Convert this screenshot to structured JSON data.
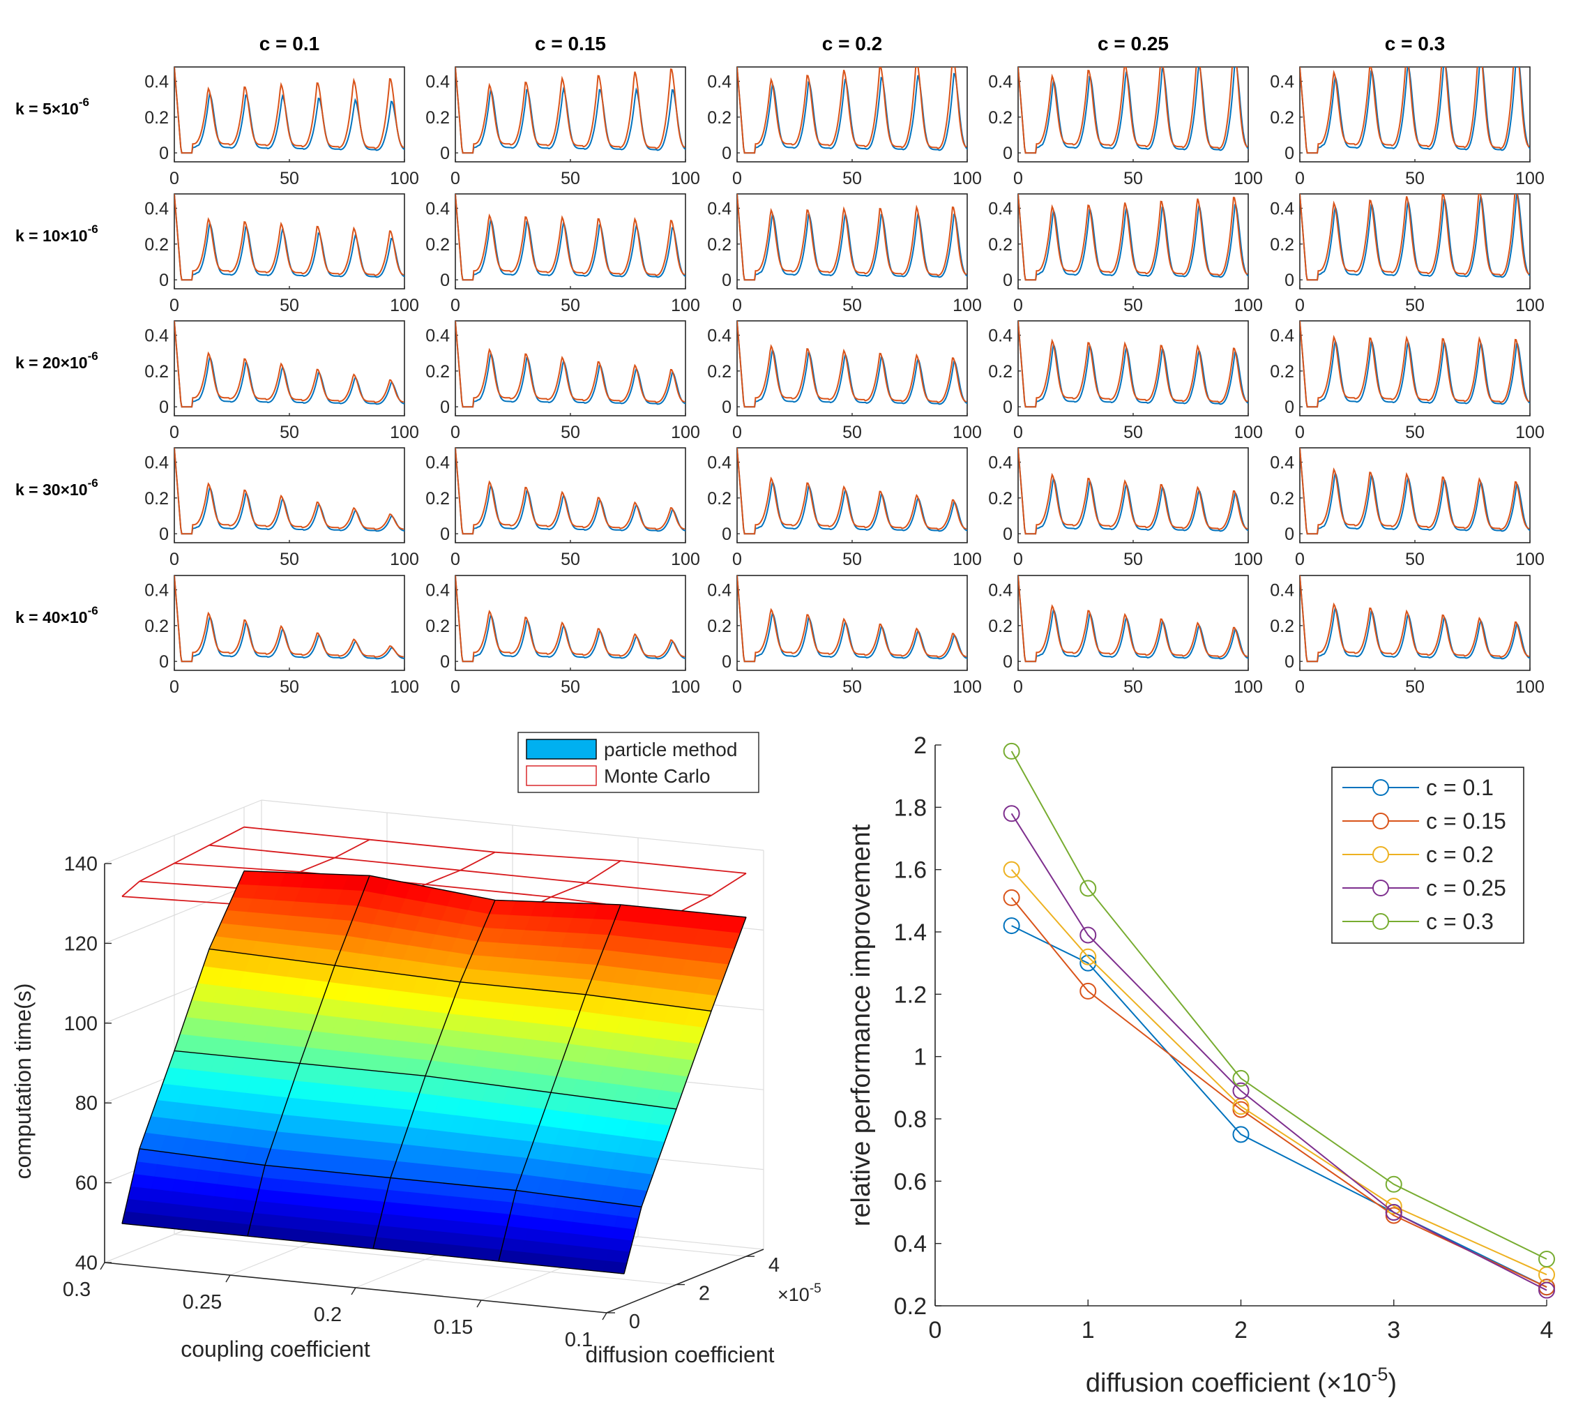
{
  "chart_data": [
    {
      "type": "line",
      "subtype": "small-multiples",
      "column_titles": [
        "c = 0.1",
        "c = 0.15",
        "c = 0.2",
        "c = 0.25",
        "c = 0.3"
      ],
      "row_labels": [
        "k = 5×10",
        "k = 10×10",
        "k = 20×10",
        "k = 30×10",
        "k = 40×10"
      ],
      "row_label_exponent": "-6",
      "c_values": [
        0.1,
        0.15,
        0.2,
        0.25,
        0.3
      ],
      "k_values": [
        5,
        10,
        20,
        30,
        40
      ],
      "xlim": [
        0,
        100
      ],
      "ylim": [
        -0.05,
        0.48
      ],
      "x_ticks": [
        "0",
        "50",
        "100"
      ],
      "y_ticks": [
        "0",
        "0.2",
        "0.4"
      ],
      "period": 15.8,
      "series_colors": [
        "#0072BD",
        "#D95319"
      ],
      "grid": false,
      "first_peak_amplitude": [
        [
          0.31,
          0.33,
          0.36,
          0.38,
          0.4
        ],
        [
          0.29,
          0.31,
          0.34,
          0.36,
          0.38
        ],
        [
          0.25,
          0.27,
          0.29,
          0.32,
          0.34
        ],
        [
          0.23,
          0.24,
          0.26,
          0.28,
          0.31
        ],
        [
          0.22,
          0.23,
          0.24,
          0.26,
          0.27
        ]
      ],
      "amplitude_growth": [
        [
          0.06,
          0.08,
          0.1,
          0.12,
          0.14
        ],
        [
          -0.03,
          0.0,
          0.03,
          0.05,
          0.07
        ],
        [
          -0.11,
          -0.07,
          -0.03,
          -0.01,
          0.01
        ],
        [
          -0.14,
          -0.11,
          -0.08,
          -0.05,
          -0.03
        ],
        [
          -0.16,
          -0.13,
          -0.1,
          -0.08,
          -0.06
        ]
      ],
      "second_series_divergence": [
        [
          0.3,
          0.24,
          0.17,
          0.14,
          0.12
        ],
        [
          0.13,
          0.1,
          0.08,
          0.07,
          0.06
        ],
        [
          0.04,
          0.04,
          0.04,
          0.04,
          0.04
        ],
        [
          0.02,
          0.02,
          0.02,
          0.02,
          0.02
        ],
        [
          0.01,
          0.01,
          0.01,
          0.01,
          0.01
        ]
      ]
    },
    {
      "type": "surface",
      "legend": [
        "particle method",
        "Monte Carlo"
      ],
      "legend_position": "top-right",
      "xlabel": "coupling coefficient",
      "ylabel": "diffusion coefficient",
      "zlabel": "computation time(s)",
      "x_ticks": [
        "0.3",
        "0.25",
        "0.2",
        "0.15",
        "0.1"
      ],
      "y_ticks": [
        "0",
        "2",
        "4"
      ],
      "y_multiplier": "×10",
      "y_multiplier_exponent": "-5",
      "z_ticks": [
        "40",
        "60",
        "80",
        "100",
        "120",
        "140"
      ],
      "xlim": [
        0.1,
        0.3
      ],
      "ylim": [
        0,
        4.5
      ],
      "zlim": [
        40,
        140
      ],
      "x_values": [
        0.3,
        0.25,
        0.2,
        0.15,
        0.1
      ],
      "y_values": [
        0.5,
        1,
        2,
        3,
        4
      ],
      "particle_method": [
        [
          48,
          48,
          48,
          48,
          48
        ],
        [
          65,
          64,
          64,
          64,
          63
        ],
        [
          86,
          86,
          86,
          85,
          84
        ],
        [
          108,
          107,
          106,
          106,
          105
        ],
        [
          124,
          126,
          123,
          125,
          125
        ]
      ],
      "monte_carlo": [
        [
          130,
          131,
          131,
          132,
          132
        ],
        [
          132,
          133,
          134,
          133,
          134
        ],
        [
          133,
          134,
          134,
          134,
          133
        ],
        [
          134,
          134,
          134,
          134,
          134
        ],
        [
          135,
          135,
          135,
          136,
          136
        ]
      ],
      "colors": {
        "monte_carlo": "#D7191C",
        "surface_edge": "#000000"
      }
    },
    {
      "type": "line",
      "xlabel": "diffusion coefficient (×10",
      "xlabel_exponent": "-5",
      "xlabel_suffix": ")",
      "ylabel": "relative performance improvement",
      "xlim": [
        0,
        4
      ],
      "ylim": [
        0.2,
        2
      ],
      "x_ticks": [
        "0",
        "1",
        "2",
        "3",
        "4"
      ],
      "y_ticks": [
        "0.2",
        "0.4",
        "0.6",
        "0.8",
        "1",
        "1.2",
        "1.4",
        "1.6",
        "1.8",
        "2"
      ],
      "x": [
        0.5,
        1,
        2,
        3,
        4
      ],
      "legend_position": "top-right",
      "marker": "circle",
      "series": [
        {
          "name": "c = 0.1",
          "color": "#0072BD",
          "values": [
            1.42,
            1.3,
            0.75,
            0.5,
            0.26
          ]
        },
        {
          "name": "c = 0.15",
          "color": "#D95319",
          "values": [
            1.51,
            1.21,
            0.83,
            0.49,
            0.26
          ]
        },
        {
          "name": "c = 0.2",
          "color": "#EDB120",
          "values": [
            1.6,
            1.32,
            0.84,
            0.52,
            0.3
          ]
        },
        {
          "name": "c = 0.25",
          "color": "#7E2F8E",
          "values": [
            1.78,
            1.39,
            0.89,
            0.5,
            0.25
          ]
        },
        {
          "name": "c = 0.3",
          "color": "#77AC30",
          "values": [
            1.98,
            1.54,
            0.93,
            0.59,
            0.35
          ]
        }
      ]
    }
  ]
}
